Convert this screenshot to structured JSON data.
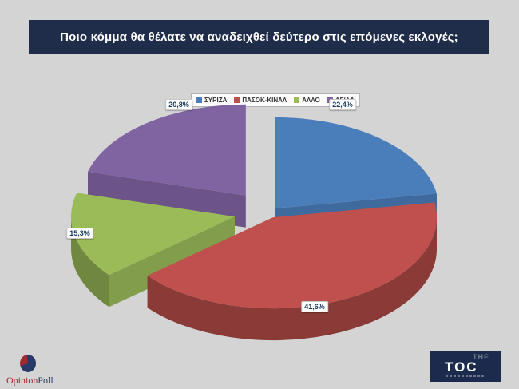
{
  "title": "Ποιο κόμμα θα θέλατε να αναδειχθεί δεύτερο στις επόμενες εκλογές;",
  "chart_data": {
    "type": "pie",
    "style": "3d-exploded",
    "unit": "%",
    "legend_position": "top",
    "start_angle_deg": 0,
    "direction": "clockwise",
    "slices": [
      {
        "name": "ΣΥΡΙΖΑ",
        "value": 22.4,
        "label": "22,4%",
        "color": "#4a7ebb"
      },
      {
        "name": "ΠΑΣΟΚ-ΚΙΝΑΛ",
        "value": 41.6,
        "label": "41,6%",
        "color": "#c0504d"
      },
      {
        "name": "ΑΛΛΟ",
        "value": 15.3,
        "label": "15,3%",
        "color": "#9bbb59"
      },
      {
        "name": "ΔΓ/ΔΑ",
        "value": 20.8,
        "label": "20,8%",
        "color": "#8064a2"
      }
    ]
  },
  "footer": {
    "opinion_poll_logo": {
      "part1": "Opinion",
      "part2": "Poll",
      "part1_color": "#a5282c",
      "part2_color": "#2a3a68"
    },
    "thetoc_logo": {
      "line1": "THE",
      "line2": "TOC",
      "background": "#1c2a4d"
    }
  },
  "colors": {
    "page_background": "#d4d4d4",
    "title_bar_background": "#1f2d4b",
    "title_text": "#ffffff",
    "data_label_text": "#17375e"
  }
}
